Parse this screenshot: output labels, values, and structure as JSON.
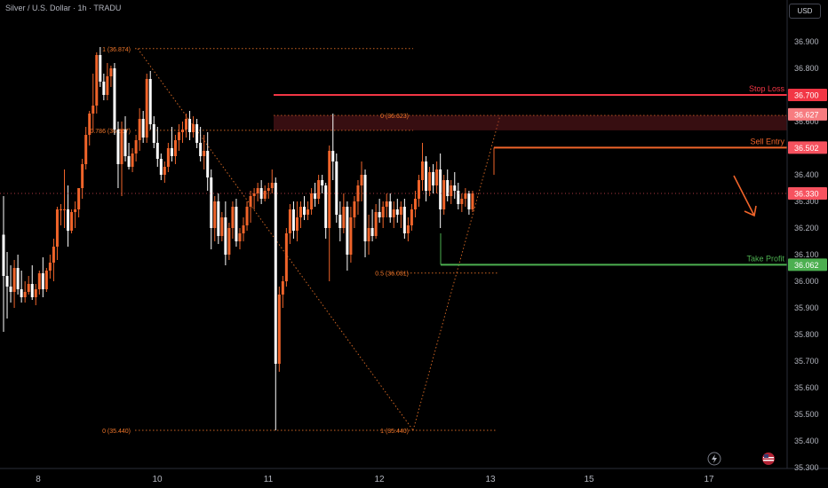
{
  "header": {
    "title": "Silver / U.S. Dollar · 1h · TRADU",
    "currency": "USD"
  },
  "chart_data": {
    "type": "candlestick",
    "symbol": "Silver / U.S. Dollar",
    "timeframe": "1h",
    "broker": "TRADU",
    "price_axis": {
      "ticks": [
        "36.900",
        "36.800",
        "36.700",
        "36.600",
        "36.500",
        "36.400",
        "36.300",
        "36.200",
        "36.100",
        "36.000",
        "35.900",
        "35.800",
        "35.700",
        "35.600",
        "35.500",
        "35.400",
        "35.300"
      ],
      "range": [
        35.3,
        36.95
      ]
    },
    "time_axis": {
      "ticks": [
        "8",
        "10",
        "11",
        "12",
        "13",
        "15",
        "17"
      ]
    },
    "price_tags": [
      {
        "value": "36.700",
        "color": "#f23645"
      },
      {
        "value": "36.627",
        "color": "#f77c80"
      },
      {
        "value": "36.502",
        "color": "#f7525f"
      },
      {
        "value": "36.330",
        "color": "#f7525f"
      },
      {
        "value": "36.062",
        "color": "#4caf50"
      }
    ],
    "levels": [
      {
        "label": "Stop Loss",
        "price": 36.7,
        "color": "#f23645"
      },
      {
        "label": "Sell Entry",
        "price": 36.502,
        "color": "#f0642a"
      },
      {
        "label": "Take Profit",
        "price": 36.062,
        "color": "#4caf50"
      }
    ],
    "fib_labels": [
      {
        "text": "1 (36.874)",
        "price": 36.874
      },
      {
        "text": "0.786 (36.567)",
        "price": 36.567
      },
      {
        "text": "0 (35.440)",
        "price": 35.44
      },
      {
        "text": "0 (36.623)",
        "price": 36.623
      },
      {
        "text": "0.5 (36.031)",
        "price": 36.031
      },
      {
        "text": "1 (35.440)",
        "price": 35.44
      }
    ],
    "current_price": 36.33,
    "candles": [
      [
        36.175,
        36.32,
        35.81,
        36.02
      ],
      [
        36.02,
        36.11,
        35.86,
        35.98
      ],
      [
        35.98,
        36.06,
        35.92,
        35.96
      ],
      [
        35.96,
        36.08,
        35.9,
        36.05
      ],
      [
        36.05,
        36.1,
        35.95,
        35.97
      ],
      [
        35.97,
        36.04,
        35.92,
        35.94
      ],
      [
        35.94,
        36.0,
        35.92,
        35.96
      ],
      [
        35.96,
        36.02,
        35.95,
        35.99
      ],
      [
        35.99,
        36.06,
        35.93,
        35.94
      ],
      [
        35.94,
        35.99,
        35.91,
        35.97
      ],
      [
        35.97,
        36.04,
        35.95,
        36.03
      ],
      [
        36.03,
        36.09,
        35.94,
        35.97
      ],
      [
        35.97,
        36.05,
        35.96,
        36.04
      ],
      [
        36.04,
        36.1,
        36.01,
        36.07
      ],
      [
        36.07,
        36.16,
        36.0,
        36.13
      ],
      [
        36.13,
        36.28,
        36.08,
        36.27
      ],
      [
        36.27,
        36.29,
        36.21,
        36.27
      ],
      [
        36.27,
        36.42,
        36.2,
        36.27
      ],
      [
        36.27,
        36.36,
        36.13,
        36.19
      ],
      [
        36.19,
        36.27,
        36.18,
        36.26
      ],
      [
        36.26,
        36.3,
        36.2,
        36.27
      ],
      [
        36.27,
        36.35,
        36.24,
        36.35
      ],
      [
        36.35,
        36.46,
        36.31,
        36.44
      ],
      [
        36.44,
        36.58,
        36.42,
        36.55
      ],
      [
        36.55,
        36.64,
        36.51,
        36.63
      ],
      [
        36.63,
        36.78,
        36.56,
        36.66
      ],
      [
        36.66,
        36.86,
        36.63,
        36.85
      ],
      [
        36.85,
        36.88,
        36.73,
        36.75
      ],
      [
        36.75,
        36.78,
        36.68,
        36.7
      ],
      [
        36.7,
        36.82,
        36.68,
        36.77
      ],
      [
        36.77,
        36.81,
        36.73,
        36.8
      ],
      [
        36.8,
        36.82,
        36.55,
        36.57
      ],
      [
        36.57,
        36.6,
        36.35,
        36.44
      ],
      [
        36.44,
        36.6,
        36.32,
        36.57
      ],
      [
        36.57,
        36.62,
        36.45,
        36.47
      ],
      [
        36.47,
        36.52,
        36.42,
        36.43
      ],
      [
        36.43,
        36.5,
        36.41,
        36.48
      ],
      [
        36.48,
        36.55,
        36.45,
        36.53
      ],
      [
        36.53,
        36.65,
        36.49,
        36.61
      ],
      [
        36.61,
        36.64,
        36.52,
        36.54
      ],
      [
        36.54,
        36.78,
        36.52,
        36.76
      ],
      [
        36.76,
        36.79,
        36.57,
        36.59
      ],
      [
        36.59,
        36.62,
        36.5,
        36.52
      ],
      [
        36.52,
        36.58,
        36.43,
        36.46
      ],
      [
        36.46,
        36.48,
        36.38,
        36.4
      ],
      [
        36.4,
        36.45,
        36.37,
        36.43
      ],
      [
        36.43,
        36.52,
        36.41,
        36.5
      ],
      [
        36.5,
        36.58,
        36.45,
        36.47
      ],
      [
        36.47,
        36.55,
        36.44,
        36.53
      ],
      [
        36.53,
        36.59,
        36.49,
        36.56
      ],
      [
        36.56,
        36.6,
        36.52,
        36.57
      ],
      [
        36.57,
        36.63,
        36.54,
        36.61
      ],
      [
        36.61,
        36.64,
        36.53,
        36.56
      ],
      [
        36.56,
        36.62,
        36.54,
        36.59
      ],
      [
        36.59,
        36.61,
        36.5,
        36.52
      ],
      [
        36.52,
        36.58,
        36.45,
        36.47
      ],
      [
        36.47,
        36.55,
        36.42,
        36.49
      ],
      [
        36.49,
        36.56,
        36.34,
        36.39
      ],
      [
        36.39,
        36.42,
        36.12,
        36.2
      ],
      [
        36.2,
        36.32,
        36.15,
        36.3
      ],
      [
        36.3,
        36.33,
        36.14,
        36.17
      ],
      [
        36.17,
        36.26,
        36.15,
        36.24
      ],
      [
        36.24,
        36.3,
        36.06,
        36.1
      ],
      [
        36.1,
        36.22,
        36.08,
        36.2
      ],
      [
        36.2,
        36.3,
        36.16,
        36.28
      ],
      [
        36.28,
        36.31,
        36.13,
        36.15
      ],
      [
        36.15,
        36.2,
        36.12,
        36.18
      ],
      [
        36.18,
        36.24,
        36.15,
        36.21
      ],
      [
        36.21,
        36.3,
        36.19,
        36.28
      ],
      [
        36.28,
        36.34,
        36.22,
        36.32
      ],
      [
        36.32,
        36.35,
        36.27,
        36.33
      ],
      [
        36.33,
        36.37,
        36.3,
        36.35
      ],
      [
        36.35,
        36.38,
        36.29,
        36.31
      ],
      [
        36.31,
        36.36,
        36.3,
        36.34
      ],
      [
        36.34,
        36.37,
        36.31,
        36.35
      ],
      [
        36.35,
        36.42,
        36.33,
        36.37
      ],
      [
        36.37,
        36.39,
        35.44,
        35.69
      ],
      [
        35.69,
        35.98,
        35.66,
        35.95
      ],
      [
        35.95,
        36.02,
        35.9,
        36.0
      ],
      [
        36.0,
        36.2,
        35.98,
        36.18
      ],
      [
        36.18,
        36.29,
        36.14,
        36.27
      ],
      [
        36.27,
        36.3,
        36.16,
        36.19
      ],
      [
        36.19,
        36.3,
        36.15,
        36.24
      ],
      [
        36.24,
        36.3,
        36.2,
        36.28
      ],
      [
        36.28,
        36.32,
        36.23,
        36.25
      ],
      [
        36.25,
        36.3,
        36.23,
        36.27
      ],
      [
        36.27,
        36.35,
        36.25,
        36.33
      ],
      [
        36.33,
        36.37,
        36.28,
        36.31
      ],
      [
        36.31,
        36.4,
        36.29,
        36.38
      ],
      [
        36.38,
        36.4,
        36.33,
        36.36
      ],
      [
        36.36,
        36.37,
        36.16,
        36.2
      ],
      [
        36.2,
        36.51,
        36.0,
        36.49
      ],
      [
        36.49,
        36.63,
        36.38,
        36.45
      ],
      [
        36.45,
        36.48,
        36.22,
        36.25
      ],
      [
        36.25,
        36.3,
        36.15,
        36.2
      ],
      [
        36.2,
        36.33,
        36.18,
        36.28
      ],
      [
        36.28,
        36.3,
        36.04,
        36.1
      ],
      [
        36.1,
        36.28,
        36.07,
        36.24
      ],
      [
        36.24,
        36.32,
        36.2,
        36.3
      ],
      [
        36.3,
        36.38,
        36.25,
        36.36
      ],
      [
        36.36,
        36.45,
        36.3,
        36.4
      ],
      [
        36.4,
        36.42,
        36.09,
        36.15
      ],
      [
        36.15,
        36.25,
        36.1,
        36.2
      ],
      [
        36.2,
        36.27,
        36.15,
        36.17
      ],
      [
        36.17,
        36.29,
        36.16,
        36.26
      ],
      [
        36.26,
        36.31,
        36.22,
        36.24
      ],
      [
        36.24,
        36.3,
        36.2,
        36.28
      ],
      [
        36.28,
        36.33,
        36.24,
        36.3
      ],
      [
        36.3,
        36.33,
        36.22,
        36.24
      ],
      [
        36.24,
        36.3,
        36.2,
        36.27
      ],
      [
        36.27,
        36.31,
        36.22,
        36.25
      ],
      [
        36.25,
        36.3,
        36.2,
        36.28
      ],
      [
        36.28,
        36.31,
        36.16,
        36.18
      ],
      [
        36.18,
        36.24,
        36.15,
        36.21
      ],
      [
        36.21,
        36.29,
        36.19,
        36.27
      ],
      [
        36.27,
        36.34,
        36.24,
        36.31
      ],
      [
        36.31,
        36.4,
        36.28,
        36.38
      ],
      [
        36.38,
        36.52,
        36.34,
        36.45
      ],
      [
        36.45,
        36.47,
        36.3,
        36.34
      ],
      [
        36.34,
        36.43,
        36.32,
        36.41
      ],
      [
        36.41,
        36.44,
        36.33,
        36.36
      ],
      [
        36.36,
        36.45,
        36.33,
        36.42
      ],
      [
        36.42,
        36.48,
        36.2,
        36.27
      ],
      [
        36.27,
        36.4,
        36.25,
        36.38
      ],
      [
        36.38,
        36.42,
        36.3,
        36.32
      ],
      [
        36.32,
        36.38,
        36.29,
        36.36
      ],
      [
        36.36,
        36.41,
        36.31,
        36.34
      ],
      [
        36.34,
        36.37,
        36.27,
        36.29
      ],
      [
        36.29,
        36.33,
        36.26,
        36.31
      ],
      [
        36.31,
        36.35,
        36.28,
        36.33
      ],
      [
        36.33,
        36.34,
        36.25,
        36.27
      ],
      [
        36.27,
        36.34,
        36.26,
        36.33
      ]
    ]
  }
}
